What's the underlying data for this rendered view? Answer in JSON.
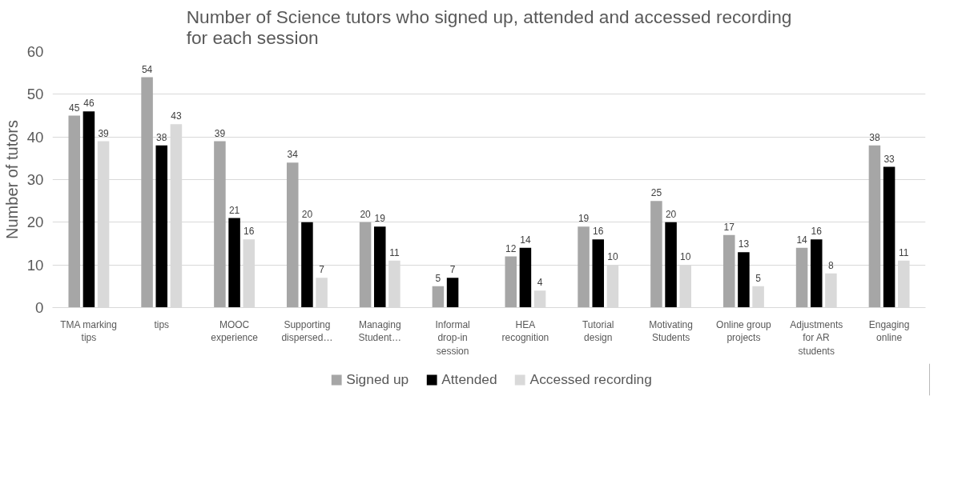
{
  "chart_data": {
    "type": "bar",
    "title": "Number of Science tutors who signed up, attended and accessed recording for each session",
    "ylabel": "Number of tutors",
    "categories": [
      "TMA marking tips",
      "tips",
      "MOOC experience",
      "Supporting dispersed…",
      "Managing Student…",
      "Informal drop-in session",
      "HEA recognition",
      "Tutorial design",
      "Motivating Students",
      "Online group projects",
      "Adjustments for AR students",
      "Engaging online"
    ],
    "series": [
      {
        "name": "Signed up",
        "color": "#a6a6a6",
        "values": [
          45,
          54,
          39,
          34,
          20,
          5,
          12,
          19,
          25,
          17,
          14,
          38
        ]
      },
      {
        "name": "Attended",
        "color": "#000000",
        "values": [
          46,
          38,
          21,
          20,
          19,
          7,
          14,
          16,
          20,
          13,
          16,
          33
        ]
      },
      {
        "name": "Accessed recording",
        "color": "#d9d9d9",
        "values": [
          39,
          43,
          16,
          7,
          11,
          null,
          4,
          10,
          10,
          5,
          8,
          11
        ]
      }
    ],
    "ylim": [
      0,
      60
    ],
    "yticks": [
      0,
      10,
      20,
      30,
      40,
      50,
      60
    ],
    "grid": "y",
    "legend": "bottom",
    "data_labels": true
  }
}
